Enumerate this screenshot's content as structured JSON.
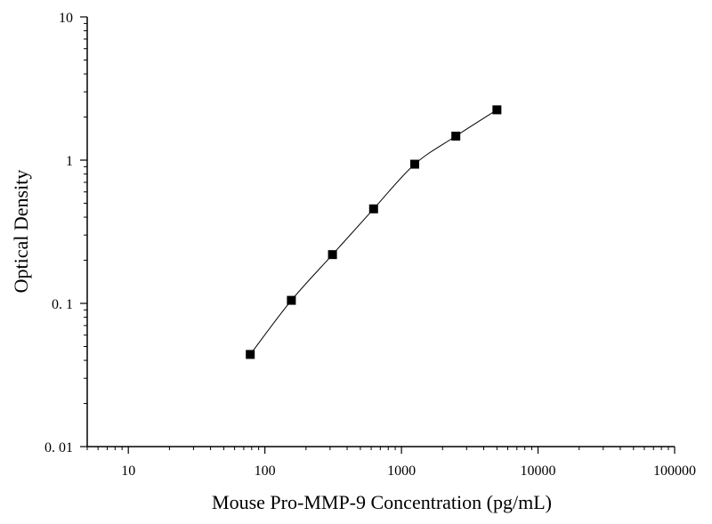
{
  "chart_data": {
    "type": "scatter",
    "title": "",
    "xlabel": "Mouse Pro-MMP-9 Concentration (pg/mL)",
    "ylabel": "Optical Density",
    "xscale": "log",
    "yscale": "log",
    "xlim": [
      5,
      100000
    ],
    "ylim": [
      0.01,
      10
    ],
    "x_ticks": [
      10,
      100,
      1000,
      10000,
      100000
    ],
    "x_tick_labels": [
      "10",
      "100",
      "1000",
      "10000",
      "100000"
    ],
    "y_ticks": [
      0.01,
      0.1,
      1,
      10
    ],
    "y_tick_labels": [
      "0. 01",
      "0. 1",
      "1",
      "10"
    ],
    "grid": false,
    "marker": "square",
    "line": "smooth",
    "color": "#000000",
    "series": [
      {
        "x": [
          78.125,
          156.25,
          312.5,
          625,
          1250,
          2500,
          5000
        ],
        "y": [
          0.044,
          0.105,
          0.219,
          0.457,
          0.937,
          1.471,
          2.246
        ]
      }
    ]
  }
}
